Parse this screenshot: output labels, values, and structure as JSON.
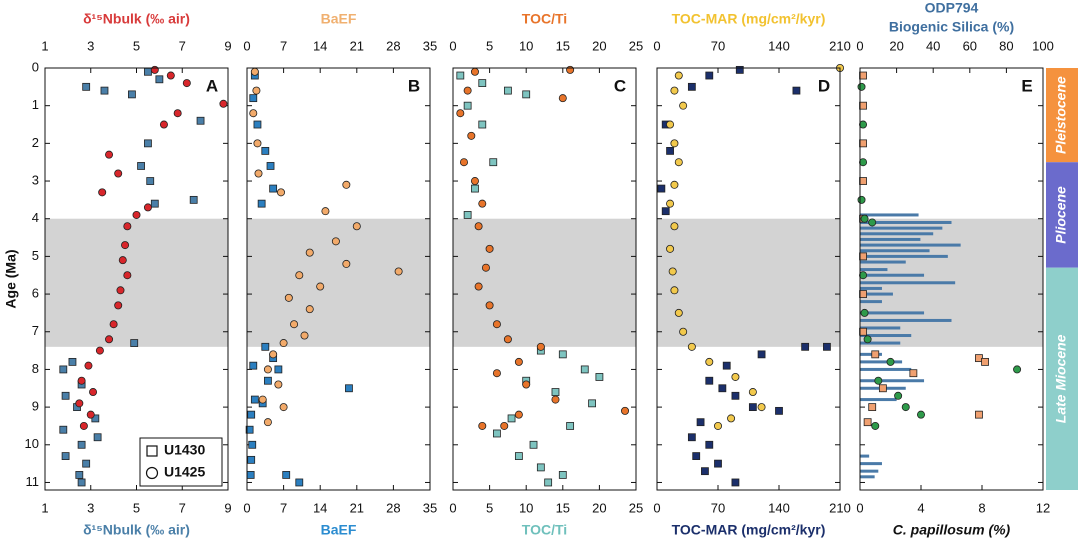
{
  "y_axis": {
    "label": "Age (Ma)",
    "lim": [
      0,
      11.2
    ],
    "ticks": [
      0,
      1,
      2,
      3,
      4,
      5,
      6,
      7,
      8,
      9,
      10,
      11
    ]
  },
  "shaded_interval": [
    4,
    7.4
  ],
  "epochs": [
    {
      "name": "Pleistocene",
      "from": 0,
      "to": 2.5,
      "color": "#f5923e"
    },
    {
      "name": "Pliocene",
      "from": 2.5,
      "to": 5.3,
      "color": "#6b6bcc"
    },
    {
      "name": "Late Miocene",
      "from": 5.3,
      "to": 11.2,
      "color": "#8ecfcb"
    }
  ],
  "chart_data": [
    {
      "type": "scatter",
      "panel": "A",
      "x_label_top": "δ¹⁵Nbulk (‰ air)",
      "x_label_bottom": "δ¹⁵Nbulk (‰ air)",
      "label_colors": {
        "top": "#d83a3a",
        "bottom": "#4a7fa8"
      },
      "xlim_top": [
        1,
        9
      ],
      "xticks_top": [
        1,
        3,
        5,
        7,
        9
      ],
      "xlim_bottom": [
        1,
        9
      ],
      "xticks_bottom": [
        1,
        3,
        5,
        7,
        9
      ],
      "legend": "bottom-right",
      "series": [
        {
          "name": "U1430",
          "color": "#4a7fa8",
          "marker": "square",
          "axis": "bottom",
          "x": [
            2.8,
            3.6,
            5.5,
            6.0,
            4.8,
            7.8,
            5.5,
            5.2,
            5.6,
            7.5,
            5.8,
            4.9,
            2.2,
            1.8,
            2.6,
            1.9,
            2.4,
            3.2,
            1.8,
            2.6,
            1.9,
            2.8,
            2.5,
            2.6,
            3.3
          ],
          "y": [
            0.5,
            0.6,
            0.1,
            0.3,
            0.7,
            1.4,
            2.0,
            2.6,
            3.0,
            3.5,
            3.6,
            7.3,
            7.8,
            8.0,
            8.4,
            8.7,
            9.0,
            9.3,
            9.6,
            10.0,
            10.3,
            10.5,
            10.8,
            11.0,
            9.8
          ]
        },
        {
          "name": "U1425",
          "color": "#d8262b",
          "marker": "circle",
          "axis": "top",
          "x": [
            5.8,
            6.5,
            7.2,
            8.8,
            6.8,
            6.2,
            3.8,
            4.2,
            3.5,
            5.5,
            5.0,
            4.6,
            4.5,
            4.4,
            4.6,
            4.3,
            4.2,
            4.0,
            3.8,
            3.4,
            2.9,
            2.6,
            3.1,
            2.5,
            3.0,
            2.7
          ],
          "y": [
            0.05,
            0.2,
            0.4,
            0.95,
            1.2,
            1.5,
            2.3,
            2.8,
            3.3,
            3.7,
            3.9,
            4.2,
            4.7,
            5.1,
            5.5,
            5.9,
            6.3,
            6.8,
            7.2,
            7.5,
            7.9,
            8.3,
            8.6,
            8.9,
            9.2,
            9.5
          ]
        }
      ]
    },
    {
      "type": "scatter",
      "panel": "B",
      "x_label_top": "BaEF",
      "x_label_bottom": "BaEF",
      "label_colors": {
        "top": "#f0b070",
        "bottom": "#2b8cd0"
      },
      "xlim_top": [
        0,
        35
      ],
      "xticks_top": [
        0,
        7,
        14,
        21,
        28,
        35
      ],
      "xlim_bottom": [
        0,
        35
      ],
      "xticks_bottom": [
        0,
        7,
        14,
        21,
        28,
        35
      ],
      "series": [
        {
          "color": "#2b7fc0",
          "marker": "square",
          "axis": "bottom",
          "x": [
            1.5,
            1.2,
            2.0,
            3.5,
            4.5,
            5.0,
            2.8,
            3.5,
            5.0,
            6.0,
            4.0,
            19.5,
            1.5,
            0.8,
            0.5,
            1.0,
            0.8,
            0.7,
            7.5,
            10,
            3.0,
            1.2
          ],
          "y": [
            0.2,
            0.8,
            1.5,
            2.2,
            2.6,
            3.2,
            3.6,
            7.4,
            7.7,
            8.0,
            8.3,
            8.5,
            8.8,
            9.2,
            9.6,
            10.0,
            10.4,
            10.8,
            10.8,
            11.0,
            8.9,
            7.9
          ]
        },
        {
          "color": "#f2aa6a",
          "marker": "circle",
          "axis": "top",
          "x": [
            1.5,
            1.8,
            1.2,
            2.0,
            2.2,
            6.5,
            19,
            15,
            21,
            17,
            12,
            19,
            29,
            10,
            14,
            8,
            12,
            9,
            11,
            7,
            5,
            4,
            6,
            3,
            7,
            4
          ],
          "y": [
            0.1,
            0.6,
            1.2,
            2.0,
            2.8,
            3.3,
            3.1,
            3.8,
            4.2,
            4.6,
            4.9,
            5.2,
            5.4,
            5.5,
            5.8,
            6.1,
            6.4,
            6.8,
            7.1,
            7.3,
            7.6,
            8.0,
            8.4,
            8.8,
            9.0,
            9.4
          ]
        }
      ]
    },
    {
      "type": "scatter",
      "panel": "C",
      "x_label_top": "TOC/Ti",
      "x_label_bottom": "TOC/Ti",
      "label_colors": {
        "top": "#e8742a",
        "bottom": "#6fc0bc"
      },
      "xlim_top": [
        0,
        25
      ],
      "xticks_top": [
        0,
        5,
        10,
        15,
        20,
        25
      ],
      "xlim_bottom": [
        0,
        25
      ],
      "xticks_bottom": [
        0,
        5,
        10,
        15,
        20,
        25
      ],
      "series": [
        {
          "color": "#7ec4c0",
          "marker": "square",
          "axis": "bottom",
          "x": [
            1,
            4,
            7.5,
            10,
            2,
            4,
            5.5,
            3,
            2,
            12,
            15,
            18,
            10,
            14,
            19,
            8,
            6,
            11,
            9,
            12,
            15,
            13,
            20,
            16
          ],
          "y": [
            0.2,
            0.4,
            0.6,
            0.7,
            1.0,
            1.5,
            2.5,
            3.2,
            3.9,
            7.5,
            7.6,
            8.0,
            8.3,
            8.6,
            8.9,
            9.3,
            9.7,
            10.0,
            10.3,
            10.6,
            10.8,
            11.0,
            8.2,
            9.5
          ]
        },
        {
          "color": "#e8742a",
          "marker": "circle",
          "axis": "top",
          "x": [
            3,
            16,
            15,
            2,
            1,
            2.5,
            1.5,
            3,
            4,
            3.5,
            5,
            4.5,
            3.5,
            5,
            6,
            7.5,
            12,
            9,
            6,
            10,
            14,
            23.5,
            9,
            4,
            7
          ],
          "y": [
            0.1,
            0.05,
            0.8,
            0.6,
            1.2,
            1.8,
            2.5,
            3.0,
            3.6,
            4.2,
            4.8,
            5.3,
            5.8,
            6.3,
            6.8,
            7.2,
            7.4,
            7.8,
            8.1,
            8.4,
            8.8,
            9.1,
            9.2,
            9.5,
            9.5
          ]
        }
      ]
    },
    {
      "type": "scatter",
      "panel": "D",
      "x_label_top": "TOC-MAR (mg/cm²/kyr)",
      "x_label_bottom": "TOC-MAR (mg/cm²/kyr)",
      "label_colors": {
        "top": "#f2c230",
        "bottom": "#1b2f6b"
      },
      "xlim_top": [
        0,
        210
      ],
      "xticks_top": [
        0,
        70,
        140,
        210
      ],
      "xlim_bottom": [
        0,
        210
      ],
      "xticks_bottom": [
        0,
        70,
        140,
        210
      ],
      "series": [
        {
          "color": "#1b2f6b",
          "marker": "square",
          "axis": "bottom",
          "x": [
            95,
            60,
            160,
            40,
            10,
            15,
            5,
            10,
            195,
            170,
            120,
            80,
            60,
            90,
            110,
            50,
            40,
            60,
            45,
            70,
            55,
            90,
            140,
            75
          ],
          "y": [
            0.05,
            0.2,
            0.6,
            0.5,
            1.5,
            2.2,
            3.2,
            3.8,
            7.4,
            7.4,
            7.6,
            7.9,
            8.3,
            8.7,
            9.0,
            9.4,
            9.8,
            10.0,
            10.3,
            10.5,
            10.7,
            11.0,
            9.1,
            8.5
          ]
        },
        {
          "color": "#f2c94c",
          "marker": "circle",
          "axis": "top",
          "x": [
            210,
            25,
            20,
            30,
            15,
            20,
            25,
            20,
            15,
            20,
            15,
            18,
            20,
            25,
            30,
            40,
            60,
            90,
            110,
            120,
            85,
            70
          ],
          "y": [
            0.0,
            0.2,
            0.6,
            1.0,
            1.5,
            2.0,
            2.5,
            3.1,
            3.6,
            4.2,
            4.8,
            5.4,
            5.9,
            6.5,
            7.0,
            7.4,
            7.8,
            8.2,
            8.6,
            9.0,
            9.3,
            9.5
          ]
        }
      ]
    },
    {
      "type": "scatter",
      "panel": "E",
      "x_label_top": [
        "ODP794",
        "Biogenic Silica (%)"
      ],
      "x_label_bottom": "C. papillosum (%)",
      "label_colors": {
        "top": "#3f6f9f",
        "bottom": "#111111"
      },
      "xlim_top": [
        0,
        100
      ],
      "xticks_top": [
        0,
        20,
        40,
        60,
        80,
        100
      ],
      "xlim_bottom": [
        0,
        12
      ],
      "xticks_bottom": [
        0,
        4,
        8,
        12
      ],
      "series": [
        {
          "type": "bar",
          "color": "#4a7aa8",
          "axis": "top",
          "x": [
            32,
            50,
            45,
            40,
            33,
            55,
            38,
            48,
            25,
            15,
            35,
            52,
            12,
            18,
            12,
            35,
            50,
            22,
            28,
            22,
            12,
            23,
            28,
            35,
            25,
            20,
            5,
            12,
            10,
            8
          ],
          "y": [
            3.9,
            4.1,
            4.25,
            4.4,
            4.55,
            4.7,
            4.85,
            5.0,
            5.15,
            5.35,
            5.5,
            5.7,
            5.85,
            6.0,
            6.2,
            6.5,
            6.7,
            6.9,
            7.1,
            7.3,
            7.6,
            7.8,
            8.0,
            8.3,
            8.5,
            8.8,
            10.3,
            10.5,
            10.7,
            10.85
          ]
        },
        {
          "color": "#f0a070",
          "marker": "square",
          "axis": "bottom",
          "x": [
            0.2,
            0.2,
            0.2,
            0.2,
            0.2,
            0.2,
            0.2,
            0.2,
            1.0,
            7.8,
            8.2,
            3.5,
            1.5,
            7.8,
            0.8,
            0.5
          ],
          "y": [
            0.2,
            1.0,
            2.0,
            3.0,
            4.0,
            5.0,
            6.0,
            7.0,
            7.6,
            7.7,
            7.8,
            8.1,
            8.5,
            9.2,
            9.0,
            9.4
          ]
        },
        {
          "color": "#2e9a4a",
          "marker": "circle",
          "axis": "bottom",
          "x": [
            0.1,
            0.2,
            0.2,
            0.1,
            0.3,
            0.8,
            0.2,
            0.3,
            0.5,
            2.0,
            10.3,
            1.2,
            2.5,
            3.0,
            4.0,
            1.0
          ],
          "y": [
            0.5,
            1.5,
            2.5,
            3.5,
            4.0,
            4.1,
            5.5,
            6.5,
            7.2,
            7.8,
            8.0,
            8.3,
            8.7,
            9.0,
            9.2,
            9.5
          ]
        }
      ]
    }
  ]
}
